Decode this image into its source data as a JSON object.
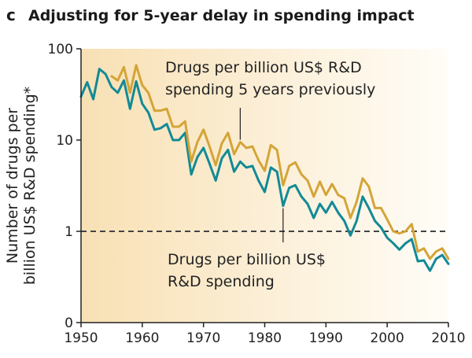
{
  "chart_data": {
    "type": "line",
    "panel_letter": "c",
    "title": "Adjusting for 5-year delay in spending impact",
    "xlabel": "",
    "ylabel_lines": [
      "Number of drugs per",
      "billion US$ R&D spending*"
    ],
    "yscale": "log",
    "xlim": [
      1950,
      2010
    ],
    "ylim": [
      0.1,
      100
    ],
    "x_ticks": [
      1950,
      1960,
      1970,
      1980,
      1990,
      2000,
      2010
    ],
    "x_tick_labels": [
      "1950",
      "1960",
      "1970",
      "1980",
      "1990",
      "2000",
      "2010"
    ],
    "y_ticks": [
      0.1,
      1,
      10,
      100
    ],
    "y_tick_labels": [
      "0",
      "1",
      "10",
      "100"
    ],
    "reference_line": {
      "y": 1,
      "style": "dashed"
    },
    "colors": {
      "background_gradient": [
        "#f8e0b4",
        "#fffdf8"
      ],
      "lagged": "#d4a437",
      "current": "#128a96",
      "reference": "#444444",
      "axis": "#222222"
    },
    "series": [
      {
        "name": "Drugs per billion US$ R&D spending",
        "color": "#128a96",
        "x": [
          1950,
          1951,
          1952,
          1953,
          1954,
          1955,
          1956,
          1957,
          1958,
          1959,
          1960,
          1961,
          1962,
          1963,
          1964,
          1965,
          1966,
          1967,
          1968,
          1969,
          1970,
          1971,
          1972,
          1973,
          1974,
          1975,
          1976,
          1977,
          1978,
          1979,
          1980,
          1981,
          1982,
          1983,
          1984,
          1985,
          1986,
          1987,
          1988,
          1989,
          1990,
          1991,
          1992,
          1993,
          1994,
          1995,
          1996,
          1997,
          1998,
          1999,
          2000,
          2001,
          2002,
          2003,
          2004,
          2005,
          2006,
          2007,
          2008,
          2009,
          2010
        ],
        "values": [
          30,
          43,
          28,
          60,
          53,
          38,
          33,
          45,
          22,
          44,
          25,
          20,
          13,
          13.5,
          15,
          10,
          10,
          12,
          4.2,
          6.5,
          8.2,
          5.5,
          3.6,
          6.3,
          7.8,
          4.5,
          5.8,
          5,
          5.2,
          3.6,
          2.7,
          5,
          4.5,
          1.9,
          3,
          3.2,
          2.4,
          2,
          1.4,
          2,
          1.6,
          2.1,
          1.6,
          1.3,
          0.9,
          1.3,
          2.4,
          1.8,
          1.3,
          1.1,
          0.85,
          0.74,
          0.63,
          0.74,
          0.82,
          0.47,
          0.48,
          0.37,
          0.5,
          0.55,
          0.44
        ]
      },
      {
        "name": "Drugs per billion US$ R&D spending 5 years previously",
        "color": "#d4a437",
        "x": [
          1955,
          1956,
          1957,
          1958,
          1959,
          1960,
          1961,
          1962,
          1963,
          1964,
          1965,
          1966,
          1967,
          1968,
          1969,
          1970,
          1971,
          1972,
          1973,
          1974,
          1975,
          1976,
          1977,
          1978,
          1979,
          1980,
          1981,
          1982,
          1983,
          1984,
          1985,
          1986,
          1987,
          1988,
          1989,
          1990,
          1991,
          1992,
          1993,
          1994,
          1995,
          1996,
          1997,
          1998,
          1999,
          2000,
          2001,
          2002,
          2003,
          2004,
          2005,
          2006,
          2007,
          2008,
          2009,
          2010
        ],
        "values": [
          50,
          45,
          63,
          33,
          66,
          40,
          33,
          21,
          21,
          22,
          14,
          14,
          16,
          5.8,
          9.5,
          13,
          8.5,
          5.3,
          9.2,
          12,
          7,
          9.5,
          8.2,
          8.5,
          6,
          4.6,
          8.8,
          7.8,
          3.2,
          5.2,
          5.7,
          4.2,
          3.6,
          2.4,
          3.5,
          2.5,
          3.3,
          2.5,
          2.3,
          1.4,
          2.1,
          3.8,
          3.1,
          1.8,
          1.8,
          1.35,
          1,
          0.95,
          1,
          1.2,
          0.6,
          0.65,
          0.5,
          0.6,
          0.65,
          0.5
        ]
      }
    ],
    "annotations": [
      {
        "text_lines": [
          "Drugs per billion US$ R&D",
          "spending 5 years previously"
        ],
        "target_series": 1,
        "target_x": 1976
      },
      {
        "text_lines": [
          "Drugs per billion US$",
          "R&D spending"
        ],
        "target_series": 0,
        "target_x": 1983
      }
    ]
  }
}
